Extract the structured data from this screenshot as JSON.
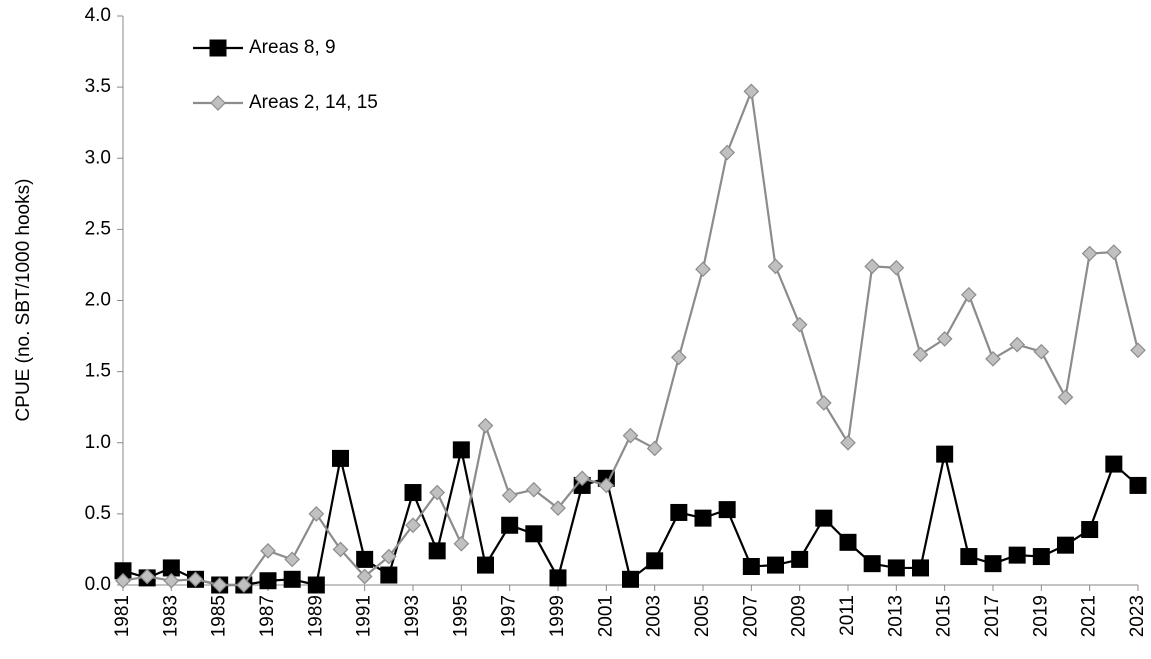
{
  "chart_data": {
    "type": "line",
    "y_label": "CPUE (no. SBT/1000 hooks)",
    "x": [
      1981,
      1982,
      1983,
      1984,
      1985,
      1986,
      1987,
      1988,
      1989,
      1990,
      1991,
      1992,
      1993,
      1994,
      1995,
      1996,
      1997,
      1998,
      1999,
      2000,
      2001,
      2002,
      2003,
      2004,
      2005,
      2006,
      2007,
      2008,
      2009,
      2010,
      2011,
      2012,
      2013,
      2014,
      2015,
      2016,
      2017,
      2018,
      2019,
      2020,
      2021,
      2022,
      2023
    ],
    "xlim": [
      1981,
      2023
    ],
    "xticks": [
      1981,
      1983,
      1985,
      1987,
      1989,
      1991,
      1993,
      1995,
      1997,
      1999,
      2001,
      2003,
      2005,
      2007,
      2009,
      2011,
      2013,
      2015,
      2017,
      2019,
      2021,
      2023
    ],
    "ylim": [
      0,
      4
    ],
    "yticks": [
      {
        "value": 0,
        "label": "0.0"
      },
      0.5,
      {
        "value": 1,
        "label": "1.0"
      },
      1.5,
      {
        "value": 2,
        "label": "2.0"
      },
      2.5,
      {
        "value": 3,
        "label": "3.0"
      },
      3.5,
      {
        "value": 4,
        "label": "4.0"
      }
    ],
    "grid": false,
    "legend": "upper left",
    "series": [
      {
        "name": "Areas 8, 9",
        "color": "#000000",
        "marker": "square",
        "values": [
          0.1,
          0.05,
          0.12,
          0.04,
          0.0,
          0.0,
          0.03,
          0.04,
          0.0,
          0.89,
          0.18,
          0.07,
          0.65,
          0.24,
          0.95,
          0.14,
          0.42,
          0.36,
          0.05,
          0.7,
          0.75,
          0.04,
          0.17,
          0.51,
          0.47,
          0.53,
          0.13,
          0.14,
          0.18,
          0.47,
          0.3,
          0.15,
          0.12,
          0.12,
          0.92,
          0.2,
          0.15,
          0.21,
          0.2,
          0.28,
          0.39,
          0.85,
          0.7
        ]
      },
      {
        "name": "Areas 2, 14, 15",
        "color": "#8c8c8c",
        "marker": "diamond",
        "values": [
          0.03,
          0.06,
          0.03,
          0.04,
          0.0,
          0.0,
          0.24,
          0.18,
          0.5,
          0.25,
          0.06,
          0.2,
          0.42,
          0.65,
          0.29,
          1.12,
          0.63,
          0.67,
          0.54,
          0.75,
          0.7,
          1.05,
          0.96,
          1.6,
          2.22,
          3.04,
          3.47,
          2.24,
          1.83,
          1.28,
          1.0,
          2.24,
          2.23,
          1.62,
          1.73,
          2.04,
          1.59,
          1.69,
          1.64,
          1.32,
          2.33,
          2.34,
          1.65
        ]
      }
    ]
  }
}
